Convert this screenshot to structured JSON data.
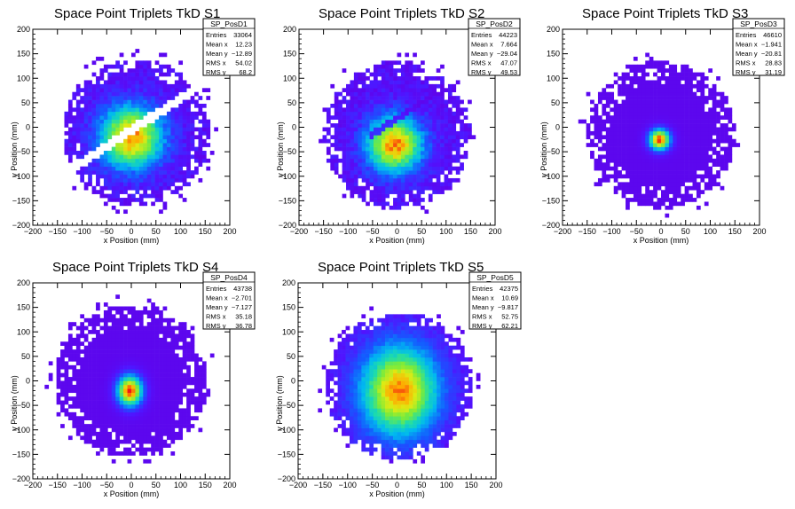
{
  "chart_data": [
    {
      "type": "heatmap",
      "title": "Space Point Triplets TkD S1",
      "xlabel": "x Position (mm)",
      "ylabel": "y Position (mm)",
      "xlim": [
        -200,
        200
      ],
      "ylim": [
        -200,
        200
      ],
      "xticks": [
        "−200",
        "−150",
        "−100",
        "−50",
        "0",
        "50",
        "100",
        "150",
        "200"
      ],
      "yticks": [
        "−200",
        "−150",
        "−100",
        "−50",
        "0",
        "50",
        "100",
        "150",
        "200"
      ],
      "stats": {
        "name": "SP_PosD1",
        "rows": [
          [
            "Entries",
            "33064"
          ],
          [
            "Mean x",
            "12.23"
          ],
          [
            "Mean y",
            "−12.89"
          ],
          [
            "RMS x",
            "54.02"
          ],
          [
            "RMS y",
            "68.2"
          ]
        ]
      },
      "distribution": {
        "shape": "disk-with-gap",
        "center": [
          10,
          -10
        ],
        "radius": 150,
        "peak": [
          0,
          -20
        ],
        "spread": [
          45,
          45
        ],
        "gap_angle_deg": 33,
        "gap_offset": -5
      }
    },
    {
      "type": "heatmap",
      "title": "Space Point Triplets TkD S2",
      "xlabel": "x Position (mm)",
      "ylabel": "y Position (mm)",
      "xlim": [
        -200,
        200
      ],
      "ylim": [
        -200,
        200
      ],
      "xticks": [
        "−200",
        "−150",
        "−100",
        "−50",
        "0",
        "50",
        "100",
        "150",
        "200"
      ],
      "yticks": [
        "−200",
        "−150",
        "−100",
        "−50",
        "0",
        "50",
        "100",
        "150",
        "200"
      ],
      "stats": {
        "name": "SP_PosD2",
        "rows": [
          [
            "Entries",
            "44223"
          ],
          [
            "Mean x",
            "7.664"
          ],
          [
            "Mean y",
            "−29.04"
          ],
          [
            "RMS x",
            "47.07"
          ],
          [
            "RMS y",
            "49.53"
          ]
        ]
      },
      "distribution": {
        "shape": "disk-with-stripe",
        "center": [
          0,
          -15
        ],
        "radius": 150,
        "peak": [
          -5,
          -35
        ],
        "spread": [
          40,
          40
        ],
        "gap_angle_deg": 33,
        "gap_offset": 15
      }
    },
    {
      "type": "heatmap",
      "title": "Space Point Triplets TkD S3",
      "xlabel": "x Position (mm)",
      "ylabel": "y Position (mm)",
      "xlim": [
        -200,
        200
      ],
      "ylim": [
        -200,
        200
      ],
      "xticks": [
        "−200",
        "−150",
        "−100",
        "−50",
        "0",
        "50",
        "100",
        "150",
        "200"
      ],
      "yticks": [
        "−200",
        "−150",
        "−100",
        "−50",
        "0",
        "50",
        "100",
        "150",
        "200"
      ],
      "stats": {
        "name": "SP_PosD3",
        "rows": [
          [
            "Entries",
            "46610"
          ],
          [
            "Mean x",
            "−1.941"
          ],
          [
            "Mean y",
            "−20.81"
          ],
          [
            "RMS x",
            "28.83"
          ],
          [
            "RMS y",
            "31.19"
          ]
        ]
      },
      "distribution": {
        "shape": "peaked-disk",
        "center": [
          0,
          -15
        ],
        "radius": 150,
        "peak": [
          -3,
          -25
        ],
        "spread": [
          15,
          15
        ]
      }
    },
    {
      "type": "heatmap",
      "title": "Space Point Triplets TkD S4",
      "xlabel": "x Position (mm)",
      "ylabel": "y Position (mm)",
      "xlim": [
        -200,
        200
      ],
      "ylim": [
        -200,
        200
      ],
      "xticks": [
        "−200",
        "−150",
        "−100",
        "−50",
        "0",
        "50",
        "100",
        "150",
        "200"
      ],
      "yticks": [
        "−200",
        "−150",
        "−100",
        "−50",
        "0",
        "50",
        "100",
        "150",
        "200"
      ],
      "stats": {
        "name": "SP_PosD4",
        "rows": [
          [
            "Entries",
            "43738"
          ],
          [
            "Mean x",
            "−2.701"
          ],
          [
            "Mean y",
            "−7.127"
          ],
          [
            "RMS x",
            "35.18"
          ],
          [
            "RMS y",
            "36.78"
          ]
        ]
      },
      "distribution": {
        "shape": "peaked-disk",
        "center": [
          0,
          0
        ],
        "radius": 155,
        "peak": [
          -3,
          -20
        ],
        "spread": [
          18,
          22
        ]
      }
    },
    {
      "type": "heatmap",
      "title": "Space Point Triplets TkD S5",
      "xlabel": "x Position (mm)",
      "ylabel": "y Position (mm)",
      "xlim": [
        -200,
        200
      ],
      "ylim": [
        -200,
        200
      ],
      "xticks": [
        "−200",
        "−150",
        "−100",
        "−50",
        "0",
        "50",
        "100",
        "150",
        "200"
      ],
      "yticks": [
        "−200",
        "−150",
        "−100",
        "−50",
        "0",
        "50",
        "100",
        "150",
        "200"
      ],
      "stats": {
        "name": "SP_PosD5",
        "rows": [
          [
            "Entries",
            "42375"
          ],
          [
            "Mean x",
            "10.69"
          ],
          [
            "Mean y",
            "−9.817"
          ],
          [
            "RMS x",
            "52.75"
          ],
          [
            "RMS y",
            "62.21"
          ]
        ]
      },
      "distribution": {
        "shape": "broad-disk",
        "center": [
          5,
          -10
        ],
        "radius": 150,
        "peak": [
          5,
          -20
        ],
        "spread": [
          55,
          65
        ]
      }
    }
  ]
}
